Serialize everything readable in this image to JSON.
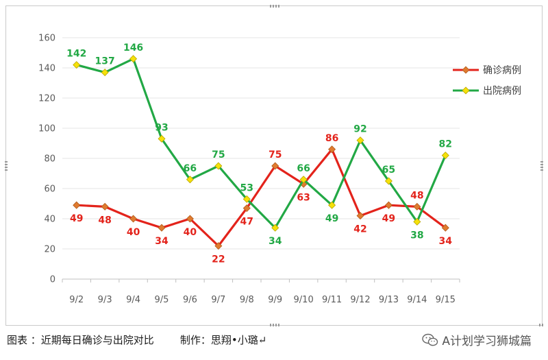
{
  "chart_data": {
    "type": "line",
    "title": "",
    "xlabel": "",
    "ylabel": "",
    "categories": [
      "9/2",
      "9/3",
      "9/4",
      "9/5",
      "9/6",
      "9/7",
      "9/8",
      "9/9",
      "9/10",
      "9/11",
      "9/12",
      "9/13",
      "9/14",
      "9/15"
    ],
    "ylim": [
      0,
      160
    ],
    "yticks": [
      0,
      20,
      40,
      60,
      80,
      100,
      120,
      140,
      160
    ],
    "grid": true,
    "legend_position": "right",
    "series": [
      {
        "name": "确诊病例",
        "color": "#e3231b",
        "marker_color": "#e07b30",
        "values": [
          49,
          48,
          40,
          34,
          40,
          22,
          47,
          75,
          63,
          86,
          42,
          49,
          48,
          34
        ],
        "labels": [
          "49",
          "48",
          "40",
          "34",
          "40",
          "22",
          "47",
          "75",
          "63",
          "86",
          "42",
          "49",
          "48",
          "34"
        ]
      },
      {
        "name": "出院病例",
        "color": "#22a845",
        "marker_color": "#f5e10a",
        "values": [
          142,
          137,
          146,
          93,
          66,
          75,
          53,
          34,
          66,
          49,
          92,
          65,
          38,
          82
        ],
        "labels": [
          "142",
          "137",
          "146",
          "93",
          "66",
          "75",
          "53",
          "34",
          "66",
          "49",
          "92",
          "65",
          "38",
          "82"
        ]
      }
    ]
  },
  "footer": {
    "caption": "图表 ：近期每日确诊与出院对比        制作：思翔•小璐↵",
    "watermark": "A计划学习狮城篇",
    "watermark_icon": "wechat-icon"
  }
}
